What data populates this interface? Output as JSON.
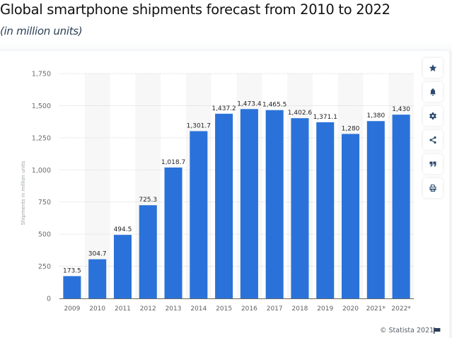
{
  "header": {
    "title": "Global smartphone shipments forecast from 2010 to 2022",
    "subtitle": "(in million units)"
  },
  "toolbar": {
    "buttons": [
      {
        "name": "favorite",
        "icon": "star-icon"
      },
      {
        "name": "notification",
        "icon": "bell-icon"
      },
      {
        "name": "settings",
        "icon": "gear-icon"
      },
      {
        "name": "share",
        "icon": "share-icon"
      },
      {
        "name": "cite",
        "icon": "quote-icon"
      },
      {
        "name": "print",
        "icon": "print-icon"
      }
    ]
  },
  "footer": {
    "credit": "© Statista 2021",
    "flag_icon": "flag-icon"
  },
  "colors": {
    "bar": "#2a72d9",
    "icon": "#2c4a6e",
    "grid": "#d9d9d9",
    "band": "#f7f7f7"
  },
  "chart_data": {
    "type": "bar",
    "title": "Global smartphone shipments forecast from 2010 to 2022",
    "subtitle": "(in million units)",
    "xlabel": "",
    "ylabel": "Shipments in million units",
    "categories": [
      "2009",
      "2010",
      "2011",
      "2012",
      "2013",
      "2014",
      "2015",
      "2016",
      "2017",
      "2018",
      "2019",
      "2020",
      "2021*",
      "2022*"
    ],
    "values": [
      173.5,
      304.7,
      494.5,
      725.3,
      1018.7,
      1301.7,
      1437.2,
      1473.4,
      1465.5,
      1402.6,
      1371.1,
      1280,
      1380,
      1430
    ],
    "value_labels": [
      "173.5",
      "304.7",
      "494.5",
      "725.3",
      "1,018.7",
      "1,301.7",
      "1,437.2",
      "1,473.4",
      "1,465.5",
      "1,402.6",
      "1,371.1",
      "1,280",
      "1,380",
      "1,430"
    ],
    "ylim": [
      0,
      1750
    ],
    "yticks": [
      0,
      250,
      500,
      750,
      1000,
      1250,
      1500,
      1750
    ],
    "ytick_labels": [
      "0",
      "250",
      "500",
      "750",
      "1,000",
      "1,250",
      "1,500",
      "1,750"
    ],
    "grid": true,
    "legend": "none"
  }
}
